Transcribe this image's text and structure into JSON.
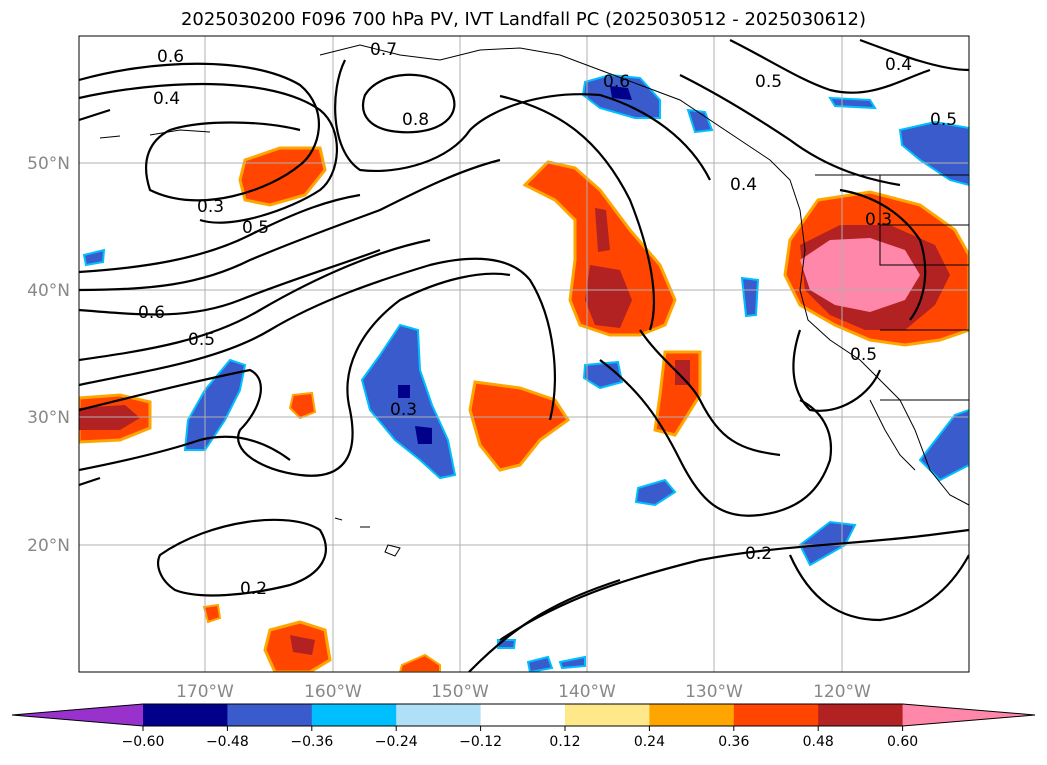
{
  "title": "2025030200 F096 700 hPa PV, IVT Landfall PC (2025030512 - 2025030612)",
  "map": {
    "lat_labels": [
      "50°N",
      "40°N",
      "30°N",
      "20°N"
    ],
    "lon_labels": [
      "170°W",
      "160°W",
      "150°W",
      "140°W",
      "130°W",
      "120°W"
    ],
    "contour_labels": [
      "0.6",
      "0.7",
      "0.4",
      "0.8",
      "0.6",
      "0.5",
      "0.4",
      "0.4",
      "0.5",
      "0.3",
      "0.5",
      "0.3",
      "0.6",
      "0.5",
      "0.3",
      "0.5",
      "0.2",
      "0.2"
    ]
  },
  "colorbar": {
    "ticks": [
      "−0.60",
      "−0.48",
      "−0.36",
      "−0.24",
      "−0.12",
      "0.12",
      "0.24",
      "0.36",
      "0.48",
      "0.60"
    ],
    "colors": [
      "#9932cc",
      "#00008b",
      "#3a5bcc",
      "#00bfff",
      "#b0e0f8",
      "#ffffff",
      "#ffe88a",
      "#ffa500",
      "#ff4500",
      "#b22222",
      "#ff88aa"
    ]
  },
  "colors": {
    "neg_strong": "#00008b",
    "neg_mid": "#3a5bcc",
    "neg_light": "#00bfff",
    "pos_light": "#ffe88a",
    "pos_orange": "#ffa500",
    "pos_red": "#ff4500",
    "pos_dark": "#b22222",
    "pos_pink": "#ff88aa"
  }
}
